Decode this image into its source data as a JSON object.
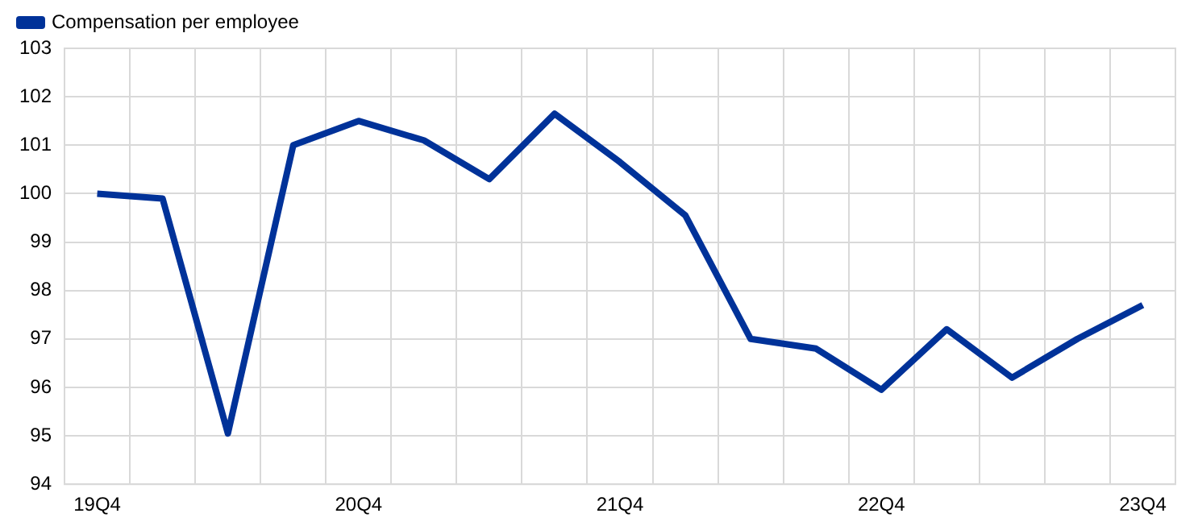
{
  "chart_data": {
    "type": "line",
    "categories": [
      "19Q4",
      null,
      null,
      null,
      "20Q4",
      null,
      null,
      null,
      "21Q4",
      null,
      null,
      null,
      "22Q4",
      null,
      null,
      null,
      "23Q4"
    ],
    "series": [
      {
        "name": "Compensation per employee",
        "color": "#003299",
        "values": [
          100,
          99.9,
          95.05,
          101,
          101.5,
          101.1,
          100.3,
          101.65,
          100.65,
          99.55,
          97,
          96.8,
          95.95,
          97.2,
          96.2,
          97,
          97.7
        ]
      }
    ],
    "ylim": [
      94,
      103
    ],
    "yticks": [
      94,
      95,
      96,
      97,
      98,
      99,
      100,
      101,
      102,
      103
    ],
    "grid": true,
    "legend": "top left",
    "marker": "none",
    "line_style": "solid"
  }
}
